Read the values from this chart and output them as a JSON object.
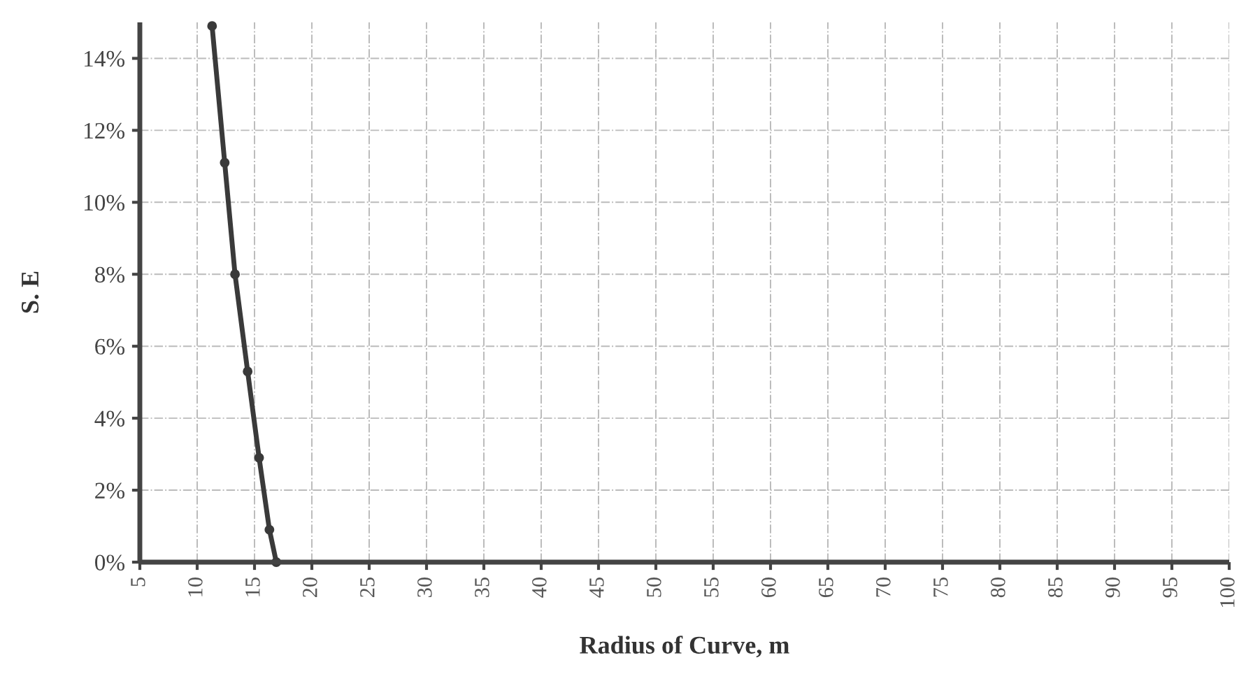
{
  "chart_data": {
    "type": "line",
    "xlabel": "Radius of Curve, m",
    "ylabel": "S. E",
    "series": [
      {
        "color": "#3a3a3a",
        "x": [
          11.3,
          12.4,
          13.3,
          14.4,
          15.4,
          16.3,
          16.9
        ],
        "values": [
          14.9,
          11.1,
          8.0,
          5.3,
          2.9,
          0.9,
          0
        ]
      }
    ],
    "xlim": [
      5,
      100
    ],
    "xticks": [
      5,
      10,
      15,
      20,
      25,
      30,
      35,
      40,
      45,
      50,
      55,
      60,
      65,
      70,
      75,
      80,
      85,
      90,
      95,
      100
    ],
    "ylim": [
      0,
      15
    ],
    "yticks": [
      {
        "value": 0,
        "label": "0%"
      },
      {
        "value": 2,
        "label": "2%"
      },
      {
        "value": 4,
        "label": "4%"
      },
      {
        "value": 6,
        "label": "6%"
      },
      {
        "value": 8,
        "label": "8%"
      },
      {
        "value": 10,
        "label": "10%"
      },
      {
        "value": 12,
        "label": "12%"
      },
      {
        "value": 14,
        "label": "14%"
      }
    ],
    "grid": true,
    "marker": "circle",
    "line_style": "solid",
    "legend": false
  }
}
